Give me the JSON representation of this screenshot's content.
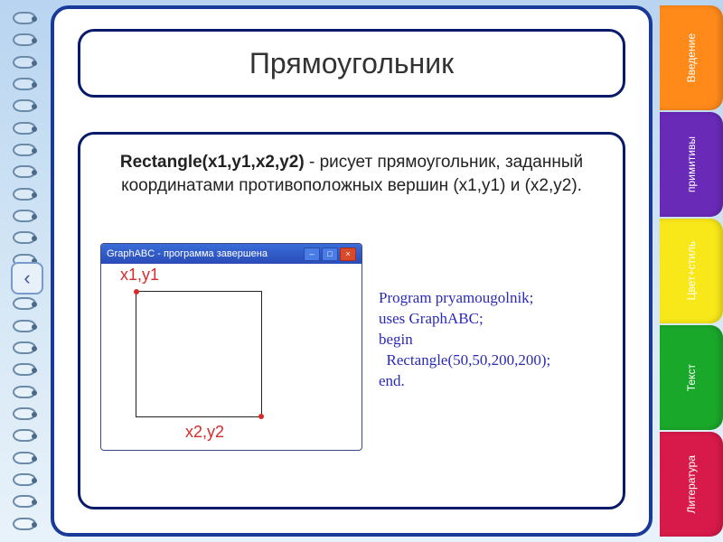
{
  "title": "Прямоугольник",
  "desc": {
    "bold": "Rectangle(x1,y1,x2,y2)",
    "rest": " - рисует прямоугольник, заданный координатами противоположных вершин (x1,y1) и (x2,y2)."
  },
  "window_title": "GraphABC - программа завершена",
  "label1": "x1,y1",
  "label2": "x2,y2",
  "code_lines": [
    "Program pryamougolnik;",
    "uses GraphABC;",
    "begin",
    "  Rectangle(50,50,200,200);",
    "end."
  ],
  "tabs": [
    {
      "label": "Введение",
      "color": "#ff8a1a"
    },
    {
      "label": "примитивы",
      "color": "#6a2ab8"
    },
    {
      "label": "Цвет+стиль",
      "color": "#f8e81a"
    },
    {
      "label": "Текст",
      "color": "#1aa82a"
    },
    {
      "label": "Литература",
      "color": "#d81a4a"
    }
  ],
  "nav": {
    "left": "‹",
    "right": "›"
  },
  "rings": 24
}
